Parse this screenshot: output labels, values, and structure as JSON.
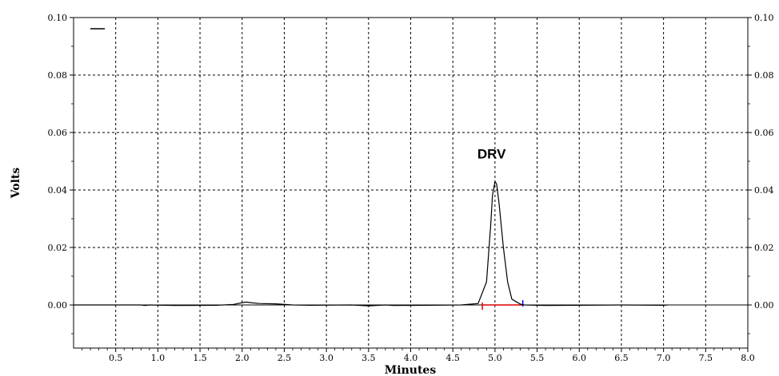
{
  "chart_data": {
    "type": "line",
    "xlabel": "Minutes",
    "ylabel": "Volts",
    "xlim": [
      0,
      8.0
    ],
    "ylim": [
      -0.015,
      0.1
    ],
    "xticks": [
      0.5,
      1.0,
      1.5,
      2.0,
      2.5,
      3.0,
      3.5,
      4.0,
      4.5,
      5.0,
      5.5,
      6.0,
      6.5,
      7.0,
      7.5,
      8.0
    ],
    "xtick_labels": [
      "0.5",
      "1.0",
      "1.5",
      "2.0",
      "2.5",
      "3.0",
      "3.5",
      "4.0",
      "4.5",
      "5.0",
      "5.5",
      "6.0",
      "6.5",
      "7.0",
      "7.5",
      "8.0"
    ],
    "yticks": [
      0.0,
      0.02,
      0.04,
      0.06,
      0.08,
      0.1
    ],
    "ytick_labels": [
      "0.00",
      "0.02",
      "0.04",
      "0.06",
      "0.08",
      "0.10"
    ],
    "yticks_right_labels": [
      "0.00",
      "0.02",
      "0.04",
      "0.06",
      "0.08",
      "0.10"
    ],
    "grid": true,
    "legend": "top-left",
    "series": [
      {
        "color": "#000000",
        "x": [
          0.0,
          0.8,
          0.85,
          0.9,
          1.2,
          1.7,
          1.9,
          2.0,
          2.05,
          2.1,
          2.2,
          2.4,
          2.6,
          2.8,
          3.3,
          3.5,
          3.7,
          3.8,
          4.2,
          4.6,
          4.8,
          4.9,
          4.95,
          4.97,
          5.0,
          5.02,
          5.05,
          5.1,
          5.15,
          5.2,
          5.3,
          5.35,
          5.6,
          6.0,
          6.5,
          7.0,
          7.05
        ],
        "y": [
          0.0,
          0.0,
          -0.0002,
          0.0,
          -0.0002,
          -0.0001,
          0.0002,
          0.0008,
          0.001,
          0.0008,
          0.0005,
          0.0004,
          0.0,
          -0.0001,
          0.0,
          -0.0003,
          0.0,
          -0.0002,
          -0.0001,
          0.0,
          0.0005,
          0.008,
          0.028,
          0.038,
          0.043,
          0.042,
          0.035,
          0.02,
          0.008,
          0.002,
          0.0003,
          0.0,
          -0.0002,
          -0.0001,
          0.0,
          -0.0001,
          0.0
        ]
      }
    ],
    "annotations": [
      {
        "text": "DRV",
        "x": 4.96,
        "y": 0.051
      }
    ],
    "integration_markers": {
      "baseline_color": "#dd0000",
      "start_color": "#dd0000",
      "end_color": "#0000dd",
      "start_x": 4.85,
      "end_x": 5.33,
      "y": 0.0
    }
  }
}
